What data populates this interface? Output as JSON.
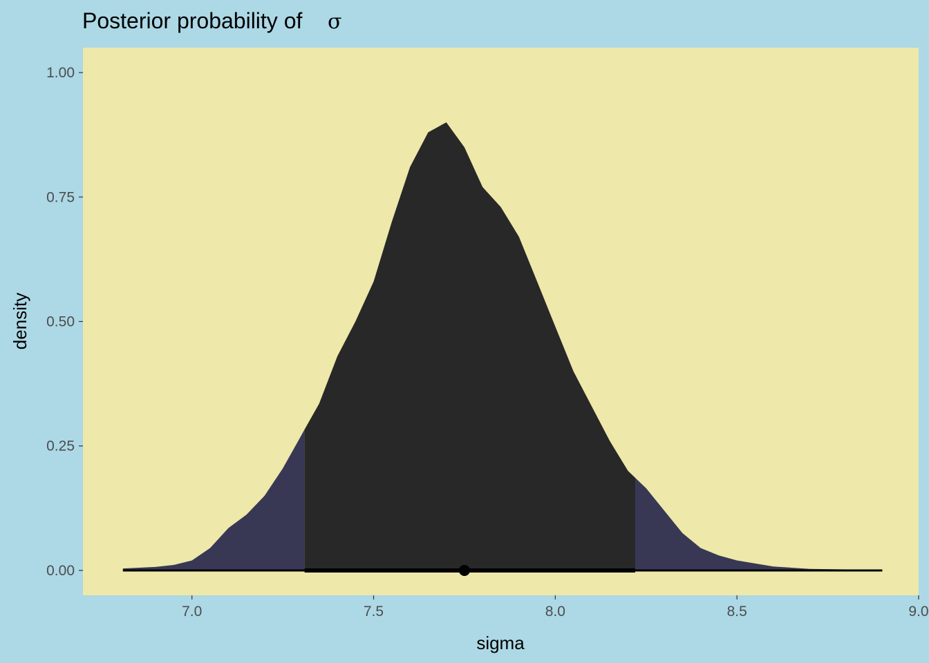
{
  "chart_data": {
    "type": "area",
    "title": "Posterior probability of",
    "title_symbol": "σ",
    "xlabel": "sigma",
    "ylabel": "density",
    "xlim": [
      6.7,
      9.0
    ],
    "ylim": [
      -0.05,
      1.05
    ],
    "x_ticks": [
      7.0,
      7.5,
      8.0,
      8.5,
      9.0
    ],
    "x_tick_labels": [
      "7.0",
      "7.5",
      "8.0",
      "8.5",
      "9.0"
    ],
    "y_ticks": [
      0.0,
      0.25,
      0.5,
      0.75,
      1.0
    ],
    "y_tick_labels": [
      "0.00",
      "0.25",
      "0.50",
      "0.75",
      "1.00"
    ],
    "grid": false,
    "density": {
      "x": [
        6.81,
        6.9,
        6.95,
        7.0,
        7.05,
        7.1,
        7.15,
        7.2,
        7.25,
        7.3,
        7.35,
        7.4,
        7.45,
        7.5,
        7.55,
        7.6,
        7.65,
        7.7,
        7.75,
        7.8,
        7.85,
        7.9,
        7.95,
        8.0,
        8.05,
        8.1,
        8.15,
        8.2,
        8.25,
        8.3,
        8.35,
        8.4,
        8.45,
        8.5,
        8.6,
        8.7,
        8.8,
        8.9
      ],
      "y": [
        0.004,
        0.007,
        0.011,
        0.02,
        0.045,
        0.085,
        0.112,
        0.15,
        0.205,
        0.27,
        0.335,
        0.43,
        0.5,
        0.58,
        0.7,
        0.81,
        0.88,
        0.9,
        0.85,
        0.77,
        0.73,
        0.67,
        0.58,
        0.49,
        0.4,
        0.33,
        0.26,
        0.2,
        0.165,
        0.12,
        0.075,
        0.045,
        0.03,
        0.02,
        0.008,
        0.003,
        0.002,
        0.001
      ]
    },
    "interval": [
      7.31,
      8.22
    ],
    "point_estimate": 7.75,
    "colors": {
      "plot_background": "#eee8aa",
      "page_background": "#add8e6",
      "tail_fill": "#383855",
      "interval_fill": "#282828",
      "interval_line": "#000000"
    }
  }
}
